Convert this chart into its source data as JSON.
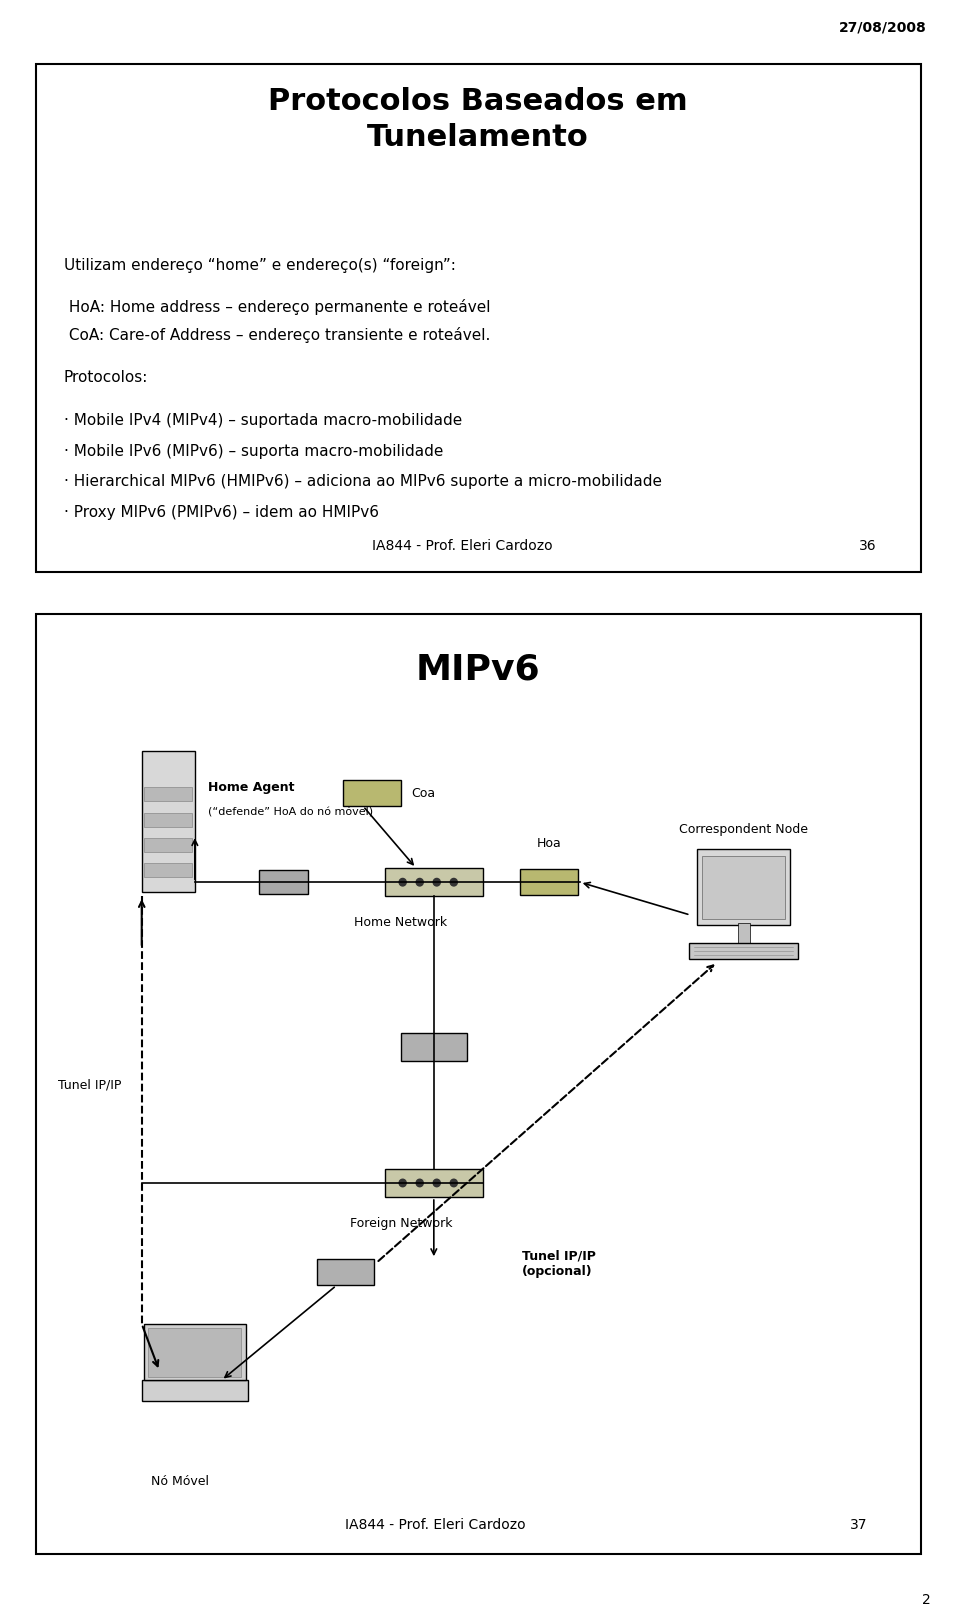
{
  "date_stamp": "27/08/2008",
  "slide1": {
    "title": "Protocolos Baseados em\nTunelamento",
    "body_lines": [
      {
        "text": "Utilizam endereço “home” e endereço(s) “foreign”:"
      },
      {
        "text": " HoA: Home address – endereço permanente e roteável"
      },
      {
        "text": " CoA: Care-of Address – endereço transiente e roteável."
      },
      {
        "text": "Protocolos:"
      },
      {
        "text": "· Mobile IPv4 (MIPv4) – suportada macro-mobilidade"
      },
      {
        "text": "· Mobile IPv6 (MIPv6) – suporta macro-mobilidade"
      },
      {
        "text": "· Hierarchical MIPv6 (HMIPv6) – adiciona ao MIPv6 suporte a micro-mobilidade"
      },
      {
        "text": "· Proxy MIPv6 (PMIPv6) – idem ao HMIPv6"
      }
    ],
    "footer": "IA844 - Prof. Eleri Cardozo",
    "page": "36"
  },
  "slide2": {
    "title": "MIPv6",
    "footer": "IA844 - Prof. Eleri Cardozo",
    "page": "37"
  },
  "bg_color": "#ffffff",
  "border_color": "#000000",
  "text_color": "#000000",
  "title_fontsize": 22,
  "body_fontsize": 11,
  "footer_fontsize": 10,
  "page_num_color": "#000000"
}
